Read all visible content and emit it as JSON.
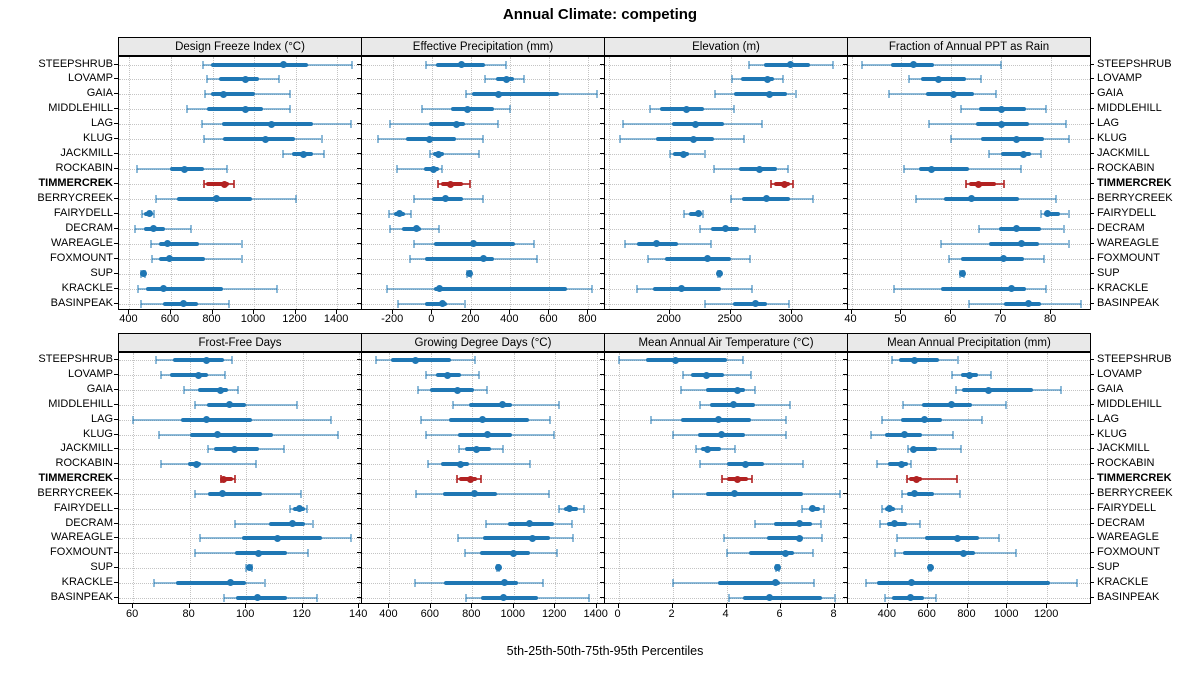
{
  "chart_data": {
    "type": "dotplot-trellis",
    "title": "Annual Climate: competing",
    "xlabel": "5th-25th-50th-75th-95th Percentiles",
    "legend_note": "whisker 5th-95th, thick bar 25th-75th, dot median",
    "grid": "dotted",
    "sites": [
      "STEEPSHRUB",
      "LOVAMP",
      "GAIA",
      "MIDDLEHILL",
      "LAG",
      "KLUG",
      "JACKMILL",
      "ROCKABIN",
      "TIMMERCREK",
      "BERRYCREEK",
      "FAIRYDELL",
      "DECRAM",
      "WAREAGLE",
      "FOXMOUNT",
      "SUP",
      "KRACKLE",
      "BASINPEAK"
    ],
    "highlight_site": "TIMMERCREK",
    "colors": {
      "normal": "#1f77b4",
      "normal_light": "rgba(31,119,180,0.5)",
      "highlight": "#b22222",
      "highlight_light": "rgba(178,34,34,0.8)",
      "strip_bg": "#e9e9e9",
      "gridline": "#c4c4c4"
    },
    "panels": [
      {
        "title": "Design Freeze Index (°C)",
        "xlim": [
          350,
          1520
        ],
        "ticks": [
          400,
          600,
          800,
          1000,
          1200,
          1400
        ],
        "data": [
          [
            755,
            795,
            1140,
            1260,
            1470
          ],
          [
            775,
            830,
            958,
            1025,
            1120
          ],
          [
            765,
            795,
            855,
            1005,
            1175
          ],
          [
            675,
            775,
            958,
            1045,
            1175
          ],
          [
            750,
            845,
            1085,
            1285,
            1465
          ],
          [
            760,
            850,
            1055,
            1200,
            1325
          ],
          [
            1140,
            1185,
            1240,
            1285,
            1335
          ],
          [
            435,
            595,
            665,
            760,
            870
          ],
          [
            760,
            768,
            858,
            880,
            903
          ],
          [
            530,
            630,
            820,
            990,
            1200
          ],
          [
            460,
            470,
            495,
            510,
            520
          ],
          [
            425,
            470,
            515,
            570,
            695
          ],
          [
            505,
            540,
            585,
            735,
            940
          ],
          [
            510,
            540,
            595,
            765,
            940
          ],
          [
            458,
            462,
            466,
            470,
            475
          ],
          [
            440,
            480,
            565,
            850,
            1110
          ],
          [
            455,
            560,
            660,
            730,
            880
          ]
        ]
      },
      {
        "title": "Effective Precipitation (mm)",
        "xlim": [
          -360,
          885
        ],
        "ticks": [
          -200,
          0,
          200,
          400,
          600,
          800
        ],
        "data": [
          [
            -30,
            20,
            150,
            270,
            380
          ],
          [
            270,
            325,
            380,
            420,
            470
          ],
          [
            175,
            205,
            340,
            650,
            845
          ],
          [
            -55,
            95,
            180,
            315,
            400
          ],
          [
            -215,
            -15,
            125,
            170,
            335
          ],
          [
            -280,
            -135,
            -15,
            120,
            260
          ],
          [
            -10,
            5,
            30,
            60,
            240
          ],
          [
            -180,
            -45,
            5,
            35,
            50
          ],
          [
            30,
            45,
            95,
            155,
            195
          ],
          [
            -95,
            0,
            70,
            155,
            260
          ],
          [
            -220,
            -195,
            -170,
            -140,
            -110
          ],
          [
            -215,
            -155,
            -80,
            -60,
            35
          ],
          [
            -95,
            10,
            210,
            425,
            520
          ],
          [
            -115,
            -40,
            260,
            315,
            535
          ],
          [
            180,
            185,
            190,
            195,
            200
          ],
          [
            -230,
            10,
            35,
            690,
            820
          ],
          [
            -175,
            -35,
            50,
            75,
            165
          ]
        ]
      },
      {
        "title": "Elevation (m)",
        "xlim": [
          1470,
          3460
        ],
        "ticks": [
          2000,
          2500,
          3000
        ],
        "grid": [
          1500,
          2000,
          2500,
          3000
        ],
        "data": [
          [
            2650,
            2770,
            2985,
            3150,
            3340
          ],
          [
            2510,
            2580,
            2800,
            2850,
            2930
          ],
          [
            2370,
            2530,
            2820,
            2960,
            3030
          ],
          [
            1840,
            1920,
            2135,
            2285,
            2525
          ],
          [
            1620,
            2015,
            2210,
            2445,
            2755
          ],
          [
            1595,
            1890,
            2195,
            2365,
            2610
          ],
          [
            2000,
            2030,
            2110,
            2160,
            2285
          ],
          [
            2365,
            2565,
            2735,
            2875,
            2970
          ],
          [
            2825,
            2850,
            2940,
            2985,
            3010
          ],
          [
            2500,
            2595,
            2790,
            2985,
            3175
          ],
          [
            2120,
            2160,
            2235,
            2258,
            2270
          ],
          [
            2245,
            2340,
            2460,
            2565,
            2700
          ],
          [
            1630,
            1730,
            1890,
            2070,
            2340
          ],
          [
            1825,
            1960,
            2310,
            2500,
            2660
          ],
          [
            2395,
            2400,
            2405,
            2410,
            2415
          ],
          [
            1730,
            1865,
            2095,
            2420,
            2675
          ],
          [
            2285,
            2515,
            2700,
            2795,
            2980
          ]
        ]
      },
      {
        "title": "Fraction of Annual PPT as Rain",
        "xlim": [
          39.3,
          88
        ],
        "ticks": [
          40,
          50,
          60,
          70,
          80
        ],
        "data": [
          [
            42,
            48,
            52.5,
            56.5,
            70
          ],
          [
            51.5,
            54,
            57.5,
            63,
            66
          ],
          [
            47.5,
            55,
            60.5,
            64.5,
            69
          ],
          [
            62,
            65.5,
            70,
            75,
            79
          ],
          [
            55.5,
            65,
            70,
            75.5,
            83
          ],
          [
            60,
            66,
            73,
            78.5,
            83.5
          ],
          [
            67.5,
            70,
            74.5,
            76,
            78
          ],
          [
            50.5,
            53.5,
            56,
            63.5,
            74
          ],
          [
            63,
            63.5,
            65.5,
            69,
            70.5
          ],
          [
            53,
            58.5,
            64,
            73.5,
            81
          ],
          [
            78,
            78.5,
            79.2,
            81.8,
            83.5
          ],
          [
            65.5,
            69.5,
            73,
            78,
            82.5
          ],
          [
            58,
            67.5,
            74,
            77.5,
            83.5
          ],
          [
            59.5,
            62,
            70.5,
            74.5,
            78.5
          ],
          [
            61.8,
            62,
            62.2,
            62.4,
            62.6
          ],
          [
            48.5,
            58,
            72,
            75,
            79
          ],
          [
            63.5,
            70.5,
            75.5,
            78,
            86
          ]
        ]
      },
      {
        "title": "Frost-Free Days",
        "xlim": [
          55,
          141
        ],
        "ticks": [
          60,
          80,
          100,
          120,
          140
        ],
        "data": [
          [
            68,
            74,
            86,
            92,
            95
          ],
          [
            70,
            73,
            83,
            86.5,
            92.5
          ],
          [
            78,
            83,
            91,
            93.5,
            97
          ],
          [
            82,
            86,
            94,
            100,
            118
          ],
          [
            60,
            77,
            86,
            102,
            130
          ],
          [
            69,
            80,
            90,
            109.5,
            132.5
          ],
          [
            86.5,
            88.5,
            96,
            104.5,
            113.5
          ],
          [
            70,
            79.5,
            82.5,
            84,
            103.5
          ],
          [
            91,
            91.5,
            92,
            95.5,
            96
          ],
          [
            82,
            86.5,
            91.5,
            105.5,
            119.5
          ],
          [
            115.5,
            116.5,
            119,
            121,
            121.5
          ],
          [
            96,
            108,
            116.5,
            121,
            123.5
          ],
          [
            83.5,
            98.5,
            111,
            127,
            137
          ],
          [
            82,
            96,
            104.5,
            114.5,
            122
          ],
          [
            100,
            100.5,
            101,
            101.5,
            102
          ],
          [
            67.5,
            75,
            94.5,
            100,
            106.5
          ],
          [
            92,
            96.5,
            104,
            114.5,
            125
          ]
        ]
      },
      {
        "title": "Growing Degree Days (°C)",
        "xlim": [
          268,
          1440
        ],
        "ticks": [
          400,
          600,
          800,
          1000,
          1200,
          1400
        ],
        "data": [
          [
            335,
            410,
            525,
            700,
            815
          ],
          [
            575,
            625,
            680,
            745,
            830
          ],
          [
            540,
            595,
            730,
            810,
            870
          ],
          [
            705,
            785,
            945,
            990,
            1220
          ],
          [
            550,
            685,
            850,
            1075,
            1175
          ],
          [
            575,
            730,
            875,
            990,
            1195
          ],
          [
            735,
            765,
            822,
            890,
            950
          ],
          [
            585,
            650,
            742,
            785,
            1080
          ],
          [
            725,
            735,
            790,
            825,
            840
          ],
          [
            530,
            660,
            810,
            920,
            1170
          ],
          [
            1220,
            1240,
            1268,
            1310,
            1340
          ],
          [
            865,
            970,
            1077,
            1195,
            1280
          ],
          [
            730,
            850,
            1090,
            1175,
            1285
          ],
          [
            765,
            835,
            1000,
            1080,
            1210
          ],
          [
            920,
            922,
            925,
            927,
            930
          ],
          [
            525,
            665,
            955,
            1020,
            1140
          ],
          [
            770,
            840,
            950,
            1115,
            1365
          ]
        ]
      },
      {
        "title": "Mean Annual Air Temperature (°C)",
        "xlim": [
          -0.5,
          8.5
        ],
        "ticks": [
          0,
          2,
          4,
          6,
          8
        ],
        "data": [
          [
            0,
            1,
            2.1,
            4,
            4.6
          ],
          [
            2.4,
            2.7,
            3.25,
            3.9,
            4.9
          ],
          [
            2.3,
            3.25,
            4.4,
            4.7,
            5.05
          ],
          [
            3,
            3.4,
            4.25,
            5.05,
            6.35
          ],
          [
            1.2,
            2.3,
            3.7,
            4.9,
            6.2
          ],
          [
            2,
            2.95,
            3.8,
            4.7,
            6.2
          ],
          [
            2.85,
            3.05,
            3.3,
            3.8,
            4.3
          ],
          [
            3,
            4,
            4.7,
            5.4,
            6.85
          ],
          [
            3.85,
            4,
            4.4,
            4.8,
            4.95
          ],
          [
            2,
            3.25,
            4.3,
            6.85,
            8.2
          ],
          [
            6.8,
            7.05,
            7.2,
            7.45,
            7.6
          ],
          [
            5.05,
            5.75,
            6.7,
            7.15,
            7.5
          ],
          [
            3.9,
            5.5,
            6.7,
            6.85,
            7.55
          ],
          [
            4,
            4.85,
            6.2,
            6.5,
            7.2
          ],
          [
            5.85,
            5.88,
            5.9,
            5.93,
            5.95
          ],
          [
            2,
            3.7,
            5.8,
            6,
            7.25
          ],
          [
            4.1,
            4.6,
            5.6,
            7.55,
            8
          ]
        ]
      },
      {
        "title": "Mean Annual Precipitation (mm)",
        "xlim": [
          200,
          1420
        ],
        "ticks": [
          400,
          600,
          800,
          1000,
          1200
        ],
        "data": [
          [
            420,
            455,
            535,
            655,
            750
          ],
          [
            720,
            765,
            810,
            855,
            920
          ],
          [
            740,
            770,
            905,
            1130,
            1270
          ],
          [
            475,
            570,
            720,
            825,
            995
          ],
          [
            370,
            465,
            585,
            670,
            875
          ],
          [
            315,
            385,
            485,
            570,
            725
          ],
          [
            500,
            515,
            530,
            645,
            765
          ],
          [
            345,
            400,
            470,
            500,
            515
          ],
          [
            495,
            505,
            545,
            570,
            745
          ],
          [
            470,
            495,
            535,
            630,
            760
          ],
          [
            370,
            385,
            408,
            435,
            470
          ],
          [
            360,
            395,
            435,
            495,
            560
          ],
          [
            445,
            585,
            750,
            860,
            960
          ],
          [
            435,
            475,
            780,
            840,
            1045
          ],
          [
            605,
            610,
            612,
            615,
            618
          ],
          [
            290,
            345,
            520,
            1215,
            1350
          ],
          [
            385,
            420,
            515,
            580,
            640
          ]
        ]
      }
    ]
  }
}
